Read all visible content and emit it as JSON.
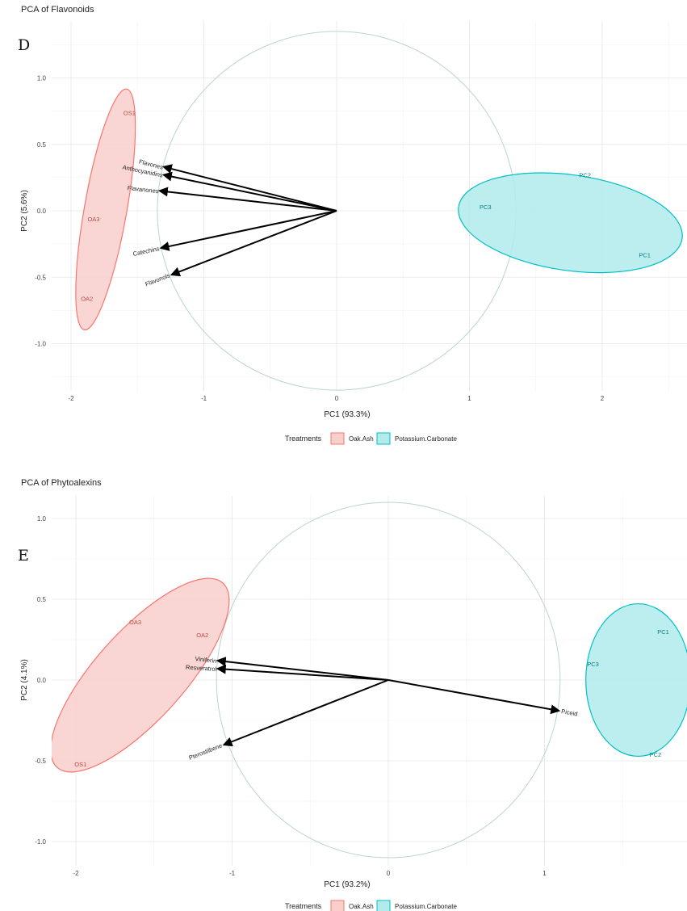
{
  "colors": {
    "oak": "#f8766d",
    "oak_fill": "#f8cfcb",
    "potassium": "#00bfc4",
    "potassium_fill": "#b2ebec",
    "circle": "#b9d5cf",
    "arrow": "#000000"
  },
  "chart_data": [
    {
      "type": "scatter",
      "title": "PCA of Flavonoids",
      "panel": "D",
      "xlabel": "PC1 (93.3%)",
      "ylabel": "PC2 (5.6%)",
      "xlim": [
        -2.2,
        2.6
      ],
      "ylim": [
        -1.35,
        1.35
      ],
      "xticks": [
        -2,
        -1,
        0,
        1,
        2
      ],
      "yticks": [
        -1.0,
        -0.5,
        0.0,
        0.5,
        1.0
      ],
      "xtick_labels": [
        "-2",
        "-1",
        "0",
        "1",
        "2"
      ],
      "ytick_labels": [
        "-1.0",
        "-0.5",
        "0.0",
        "0.5",
        "1.0"
      ],
      "grid": true,
      "legend_position": "bottom",
      "legend_title": "Treatments",
      "legend": [
        "Oak.Ash",
        "Potassium.Carbonate"
      ],
      "circle_radius": 1.35,
      "series": [
        {
          "name": "Oak.Ash",
          "points": [
            {
              "label": "OS1",
              "x": -1.56,
              "y": 0.74
            },
            {
              "label": "OA3",
              "x": -1.83,
              "y": -0.06
            },
            {
              "label": "OA2",
              "x": -1.88,
              "y": -0.66
            }
          ],
          "ellipse": {
            "cx": -1.74,
            "cy": 0.01,
            "rx": 0.92,
            "ry": 0.16,
            "angle_deg": 80
          }
        },
        {
          "name": "Potassium.Carbonate",
          "points": [
            {
              "label": "PC2",
              "x": 1.87,
              "y": 0.27
            },
            {
              "label": "PC3",
              "x": 1.12,
              "y": 0.03
            },
            {
              "label": "PC1",
              "x": 2.32,
              "y": -0.33
            }
          ],
          "ellipse": {
            "cx": 1.76,
            "cy": -0.09,
            "rx": 0.85,
            "ry": 0.36,
            "angle_deg": -8
          }
        }
      ],
      "loadings": [
        {
          "label": "Flavones",
          "x": -1.3,
          "y": 0.33
        },
        {
          "label": "Anthocyanidins",
          "x": -1.3,
          "y": 0.27
        },
        {
          "label": "Flavanones",
          "x": -1.33,
          "y": 0.15
        },
        {
          "label": "Catechins",
          "x": -1.32,
          "y": -0.28
        },
        {
          "label": "Flavonols",
          "x": -1.24,
          "y": -0.48
        }
      ]
    },
    {
      "type": "scatter",
      "title": "PCA of Phytoalexins",
      "panel": "E",
      "xlabel": "PC1 (93.2%)",
      "ylabel": "PC2 (4.1%)",
      "xlim": [
        -2.2,
        1.9
      ],
      "ylim": [
        -1.15,
        1.15
      ],
      "xticks": [
        -2,
        -1,
        0,
        1
      ],
      "yticks": [
        -1.0,
        -0.5,
        0.0,
        0.5,
        1.0
      ],
      "xtick_labels": [
        "-2",
        "-1",
        "0",
        "1"
      ],
      "ytick_labels": [
        "-1.0",
        "-0.5",
        "0.0",
        "0.5",
        "1.0"
      ],
      "grid": true,
      "legend_position": "bottom",
      "legend_title": "Treatments",
      "legend": [
        "Oak.Ash",
        "Potassium.Carbonate"
      ],
      "circle_radius": 1.1,
      "series": [
        {
          "name": "Oak.Ash",
          "points": [
            {
              "label": "OA3",
              "x": -1.62,
              "y": 0.36
            },
            {
              "label": "OA2",
              "x": -1.19,
              "y": 0.28
            },
            {
              "label": "OS1",
              "x": -1.97,
              "y": -0.52
            }
          ],
          "ellipse": {
            "cx": -1.59,
            "cy": 0.03,
            "rx": 0.78,
            "ry": 0.28,
            "angle_deg": 48
          }
        },
        {
          "name": "Potassium.Carbonate",
          "points": [
            {
              "label": "PC1",
              "x": 1.76,
              "y": 0.3
            },
            {
              "label": "PC3",
              "x": 1.31,
              "y": 0.1
            },
            {
              "label": "PC2",
              "x": 1.71,
              "y": -0.46
            }
          ],
          "ellipse": {
            "cx": 1.6,
            "cy": 0.0,
            "rx": 0.48,
            "ry": 0.33,
            "angle_deg": 90
          }
        }
      ],
      "loadings": [
        {
          "label": "Viniferin",
          "x": -1.09,
          "y": 0.12
        },
        {
          "label": "Resveratrol",
          "x": -1.09,
          "y": 0.07
        },
        {
          "label": "Piceid",
          "x": 1.09,
          "y": -0.19
        },
        {
          "label": "Pterostilbene",
          "x": -1.05,
          "y": -0.4
        }
      ]
    }
  ]
}
